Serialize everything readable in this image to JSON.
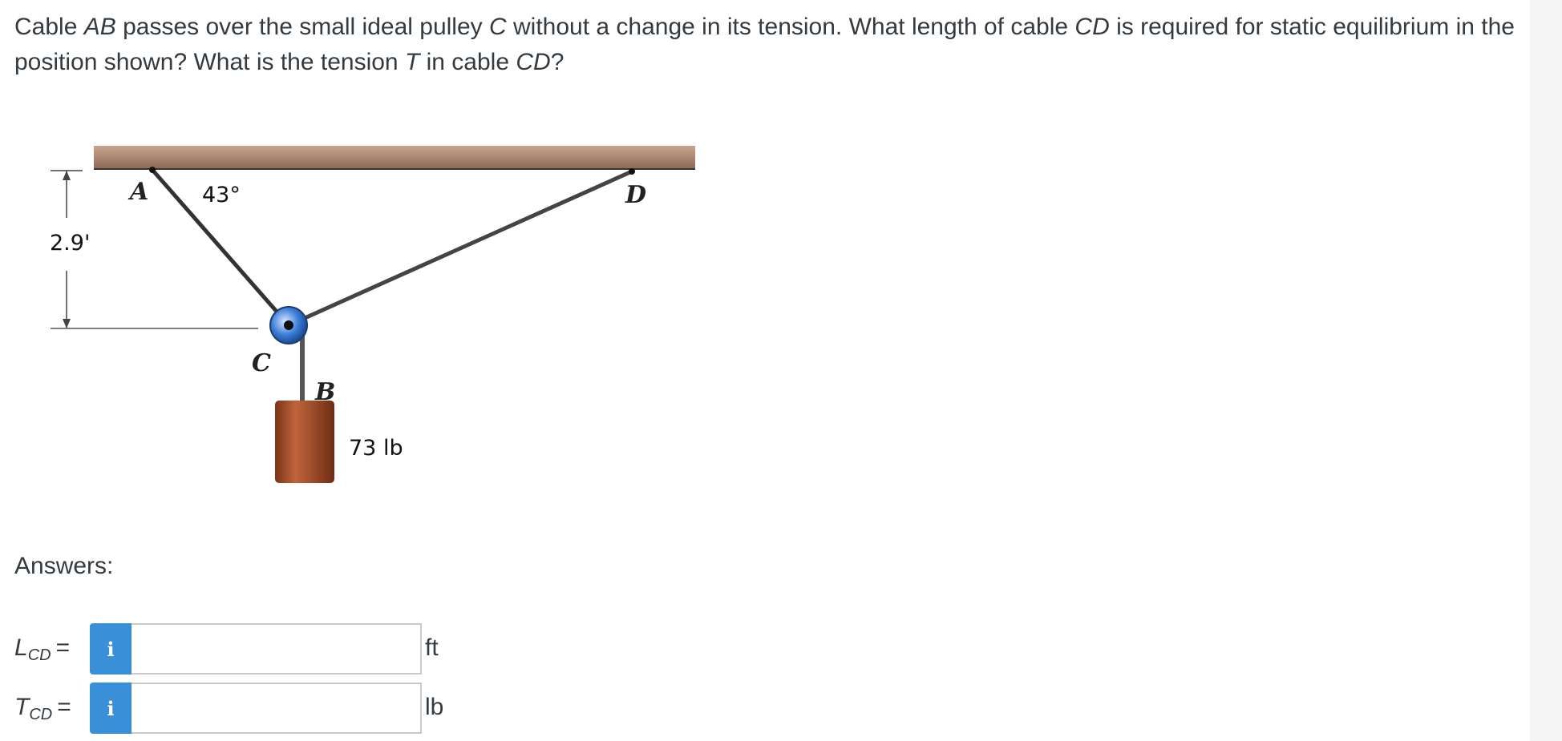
{
  "question": {
    "parts": [
      {
        "t": "Cable ",
        "i": false
      },
      {
        "t": "AB",
        "i": true
      },
      {
        "t": " passes over the small ideal pulley ",
        "i": false
      },
      {
        "t": "C",
        "i": true
      },
      {
        "t": " without a change in its tension. What length of cable ",
        "i": false
      },
      {
        "t": "CD",
        "i": true
      },
      {
        "t": " is required for static equilibrium in the position shown? What is the tension ",
        "i": false
      },
      {
        "t": "T",
        "i": true
      },
      {
        "t": " in cable ",
        "i": false
      },
      {
        "t": "CD",
        "i": true
      },
      {
        "t": "?",
        "i": false
      }
    ]
  },
  "figure": {
    "angle_label": "43°",
    "height_label": "2.9'",
    "weight_label": "73 lb",
    "point_a": "A",
    "point_b": "B",
    "point_c": "C",
    "point_d": "D"
  },
  "answers": {
    "title": "Answers:",
    "rows": [
      {
        "var": "L",
        "sub": "CD",
        "eq": "=",
        "info": "i",
        "value": "",
        "unit": "ft"
      },
      {
        "var": "T",
        "sub": "CD",
        "eq": "=",
        "info": "i",
        "value": "",
        "unit": "lb"
      }
    ]
  },
  "colors": {
    "info_button": "#3a8fd9",
    "ceiling": "#a8836b",
    "weight": "#a2502f",
    "pulley": "#3b7fd9"
  }
}
